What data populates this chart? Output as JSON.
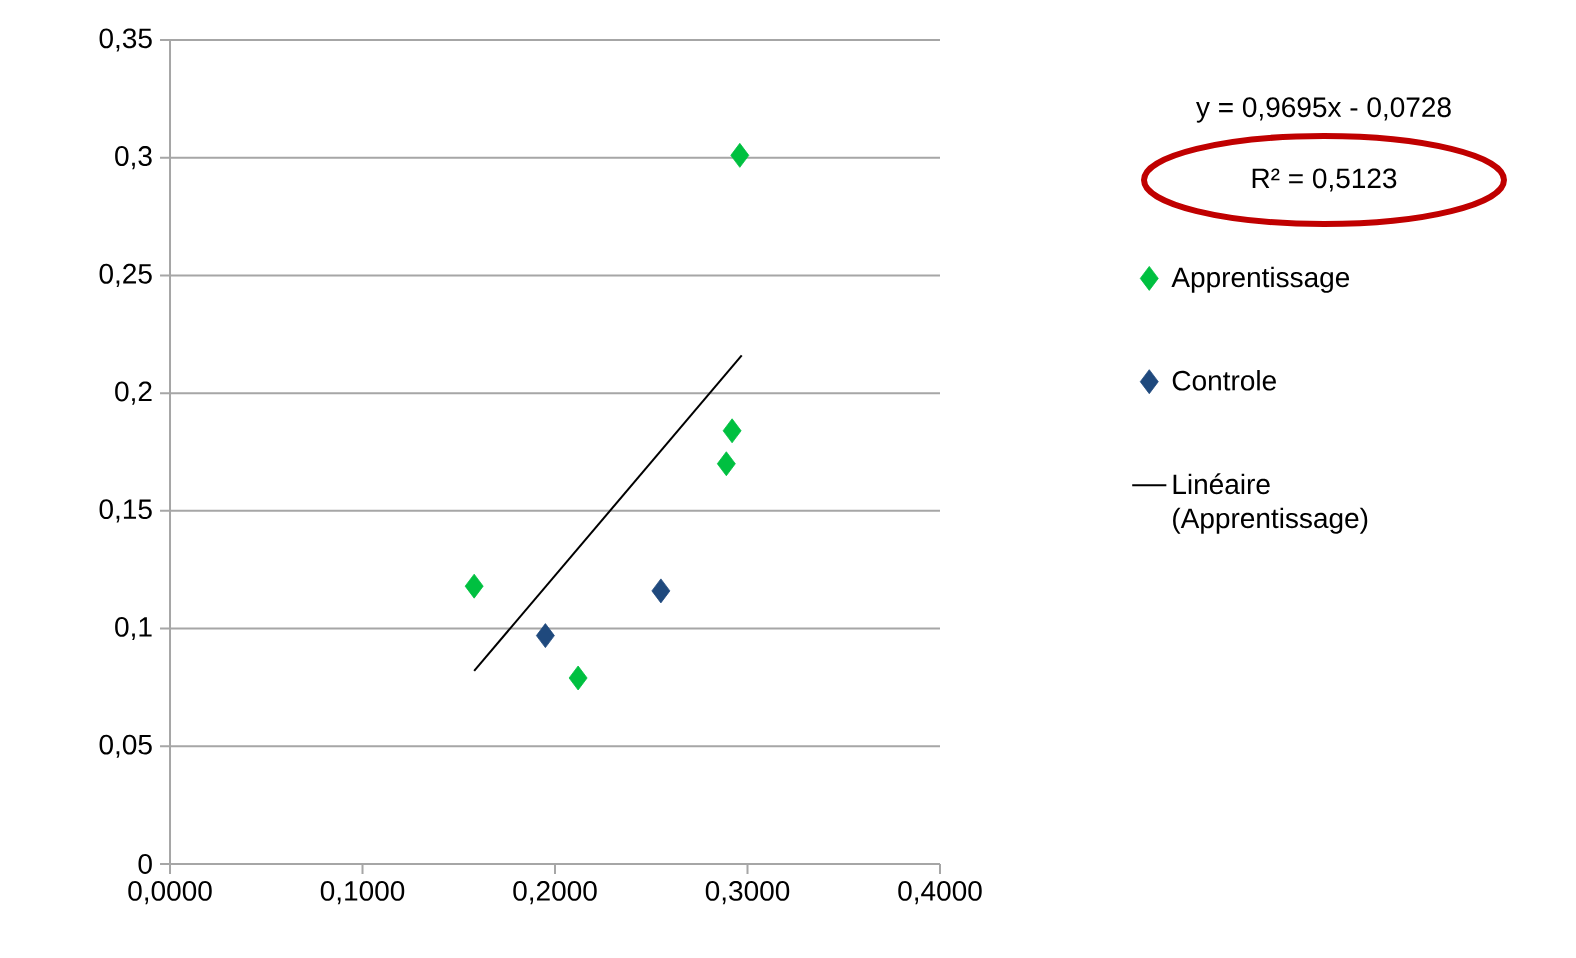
{
  "chart_data": {
    "type": "scatter",
    "marker": "diamond",
    "grid": "y",
    "legend": "right",
    "xlim": [
      0,
      0.4
    ],
    "ylim": [
      0,
      0.35
    ],
    "xticks": [
      {
        "value": 0,
        "label": "0,0000"
      },
      {
        "value": 0.1,
        "label": "0,1000"
      },
      {
        "value": 0.2,
        "label": "0,2000"
      },
      {
        "value": 0.3,
        "label": "0,3000"
      },
      {
        "value": 0.4,
        "label": "0,4000"
      }
    ],
    "yticks": [
      0,
      {
        "value": 0.05,
        "label": "0,05"
      },
      {
        "value": 0.1,
        "label": "0,1"
      },
      {
        "value": 0.15,
        "label": "0,15"
      },
      {
        "value": 0.2,
        "label": "0,2"
      },
      {
        "value": 0.25,
        "label": "0,25"
      },
      {
        "value": 0.3,
        "label": "0,3"
      },
      {
        "value": 0.35,
        "label": "0,35"
      }
    ],
    "series": [
      {
        "name": "Apprentissage",
        "color": "#00c040",
        "x": [
          0.158,
          0.212,
          0.289,
          0.292,
          0.296
        ],
        "values": [
          0.118,
          0.079,
          0.17,
          0.184,
          0.301
        ]
      },
      {
        "name": "Controle",
        "color": "#1f497d",
        "x": [
          0.195,
          0.255
        ],
        "values": [
          0.097,
          0.116
        ]
      },
      {
        "name": "Linéaire (Apprentissage)",
        "type": "line",
        "marker": "none",
        "color": "#000000",
        "x": [
          0.158,
          0.297
        ],
        "values": [
          0.082,
          0.216
        ]
      }
    ],
    "annotations": [
      "y = 0,9695x - 0,0728",
      "R² = 0,5123"
    ]
  }
}
